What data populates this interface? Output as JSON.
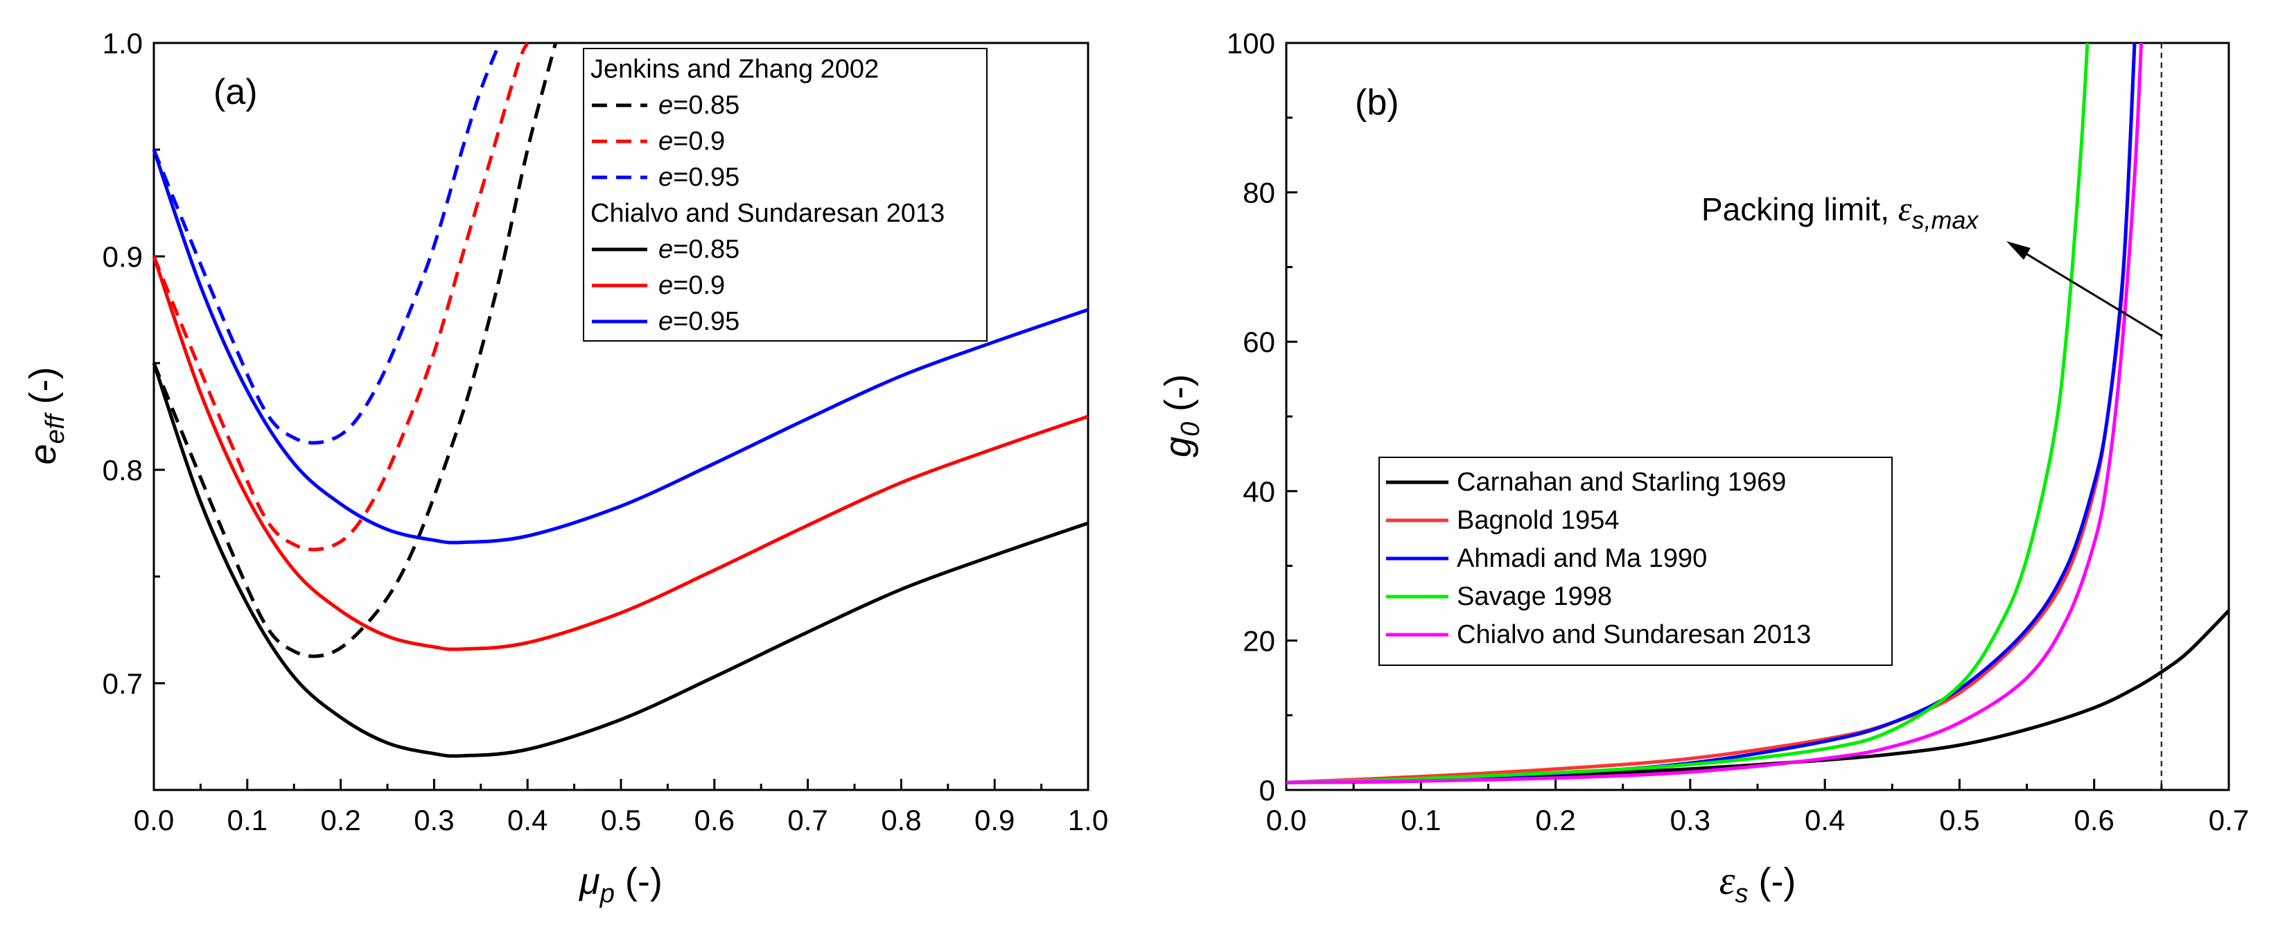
{
  "chart_data": [
    {
      "type": "line",
      "panel_label": "(a)",
      "xlabel": "μp (-)",
      "ylabel": "eeff (-)",
      "xlim": [
        0,
        1.0
      ],
      "ylim": [
        0.65,
        1.0
      ],
      "xticks": [
        "0.0",
        "0.1",
        "0.2",
        "0.3",
        "0.4",
        "0.5",
        "0.6",
        "0.7",
        "0.8",
        "0.9",
        "1.0"
      ],
      "yticks": [
        "0.7",
        "0.8",
        "0.9",
        "1.0"
      ],
      "legend_position": "top-center",
      "legend_groups": [
        {
          "title": "Jenkins and Zhang 2002",
          "series": [
            {
              "name": "e=0.85",
              "style": "dashed",
              "color": "#000000",
              "x": [
                0.0,
                0.04,
                0.08,
                0.12,
                0.15,
                0.18,
                0.21,
                0.25,
                0.28,
                0.31,
                0.34,
                0.37,
                0.4,
                0.43
              ],
              "y": [
                0.85,
                0.807,
                0.765,
                0.727,
                0.715,
                0.713,
                0.72,
                0.74,
                0.765,
                0.8,
                0.84,
                0.89,
                0.95,
                1.0
              ]
            },
            {
              "name": "e=0.9",
              "style": "dashed",
              "color": "#ff0000",
              "x": [
                0.0,
                0.04,
                0.08,
                0.12,
                0.15,
                0.18,
                0.21,
                0.24,
                0.27,
                0.3,
                0.33,
                0.36,
                0.39,
                0.4
              ],
              "y": [
                0.9,
                0.857,
                0.815,
                0.777,
                0.765,
                0.763,
                0.77,
                0.79,
                0.82,
                0.855,
                0.9,
                0.945,
                0.99,
                1.0
              ]
            },
            {
              "name": "e=0.95",
              "style": "dashed",
              "color": "#0000ff",
              "x": [
                0.0,
                0.04,
                0.08,
                0.12,
                0.15,
                0.18,
                0.21,
                0.24,
                0.27,
                0.3,
                0.33,
                0.35,
                0.37
              ],
              "y": [
                0.95,
                0.907,
                0.865,
                0.827,
                0.815,
                0.813,
                0.82,
                0.84,
                0.87,
                0.905,
                0.95,
                0.978,
                1.0
              ]
            }
          ]
        },
        {
          "title": "Chialvo and Sundaresan 2013",
          "series": [
            {
              "name": "e=0.85",
              "style": "solid",
              "color": "#000000",
              "x": [
                0.0,
                0.05,
                0.1,
                0.15,
                0.2,
                0.25,
                0.3,
                0.33,
                0.4,
                0.5,
                0.6,
                0.7,
                0.8,
                0.9,
                1.0
              ],
              "y": [
                0.85,
                0.785,
                0.737,
                0.703,
                0.684,
                0.672,
                0.667,
                0.666,
                0.669,
                0.683,
                0.703,
                0.724,
                0.744,
                0.76,
                0.775
              ]
            },
            {
              "name": "e=0.9",
              "style": "solid",
              "color": "#ff0000",
              "x": [
                0.0,
                0.05,
                0.1,
                0.15,
                0.2,
                0.25,
                0.3,
                0.33,
                0.4,
                0.5,
                0.6,
                0.7,
                0.8,
                0.9,
                1.0
              ],
              "y": [
                0.9,
                0.836,
                0.787,
                0.753,
                0.734,
                0.722,
                0.717,
                0.716,
                0.719,
                0.733,
                0.753,
                0.774,
                0.794,
                0.81,
                0.825
              ]
            },
            {
              "name": "e=0.95",
              "style": "solid",
              "color": "#0000ff",
              "x": [
                0.0,
                0.05,
                0.1,
                0.15,
                0.2,
                0.25,
                0.3,
                0.33,
                0.4,
                0.5,
                0.6,
                0.7,
                0.8,
                0.9,
                1.0
              ],
              "y": [
                0.95,
                0.886,
                0.837,
                0.803,
                0.784,
                0.772,
                0.767,
                0.766,
                0.769,
                0.783,
                0.803,
                0.824,
                0.844,
                0.86,
                0.875
              ]
            }
          ]
        }
      ]
    },
    {
      "type": "line",
      "panel_label": "(b)",
      "xlabel": "εs (-)",
      "ylabel": "g0 (-)",
      "xlim": [
        0,
        0.7
      ],
      "ylim": [
        0,
        100
      ],
      "xticks": [
        "0.0",
        "0.1",
        "0.2",
        "0.3",
        "0.4",
        "0.5",
        "0.6",
        "0.7"
      ],
      "yticks": [
        "0",
        "20",
        "40",
        "60",
        "80",
        "100"
      ],
      "legend_position": "middle-left",
      "annotation": {
        "text": "Packing limit, εs,max",
        "at_x": 0.65
      },
      "packing_limit_x": 0.65,
      "series": [
        {
          "name": "Carnahan and Starling 1969",
          "color": "#000000",
          "x": [
            0.0,
            0.1,
            0.2,
            0.3,
            0.4,
            0.45,
            0.5,
            0.55,
            0.6,
            0.63,
            0.65,
            0.67,
            0.7
          ],
          "y": [
            1.0,
            1.2,
            1.9,
            2.8,
            4.0,
            4.8,
            6.0,
            8.1,
            11.0,
            13.6,
            15.8,
            18.5,
            24.0
          ]
        },
        {
          "name": "Bagnold 1954",
          "color": "#ff3333",
          "x": [
            0.0,
            0.1,
            0.2,
            0.3,
            0.4,
            0.45,
            0.5,
            0.55,
            0.58,
            0.6,
            0.61,
            0.62,
            0.625,
            0.63
          ],
          "y": [
            1.0,
            1.8,
            2.8,
            4.2,
            6.8,
            9.0,
            13.0,
            21.0,
            29.0,
            40.0,
            50.0,
            65.0,
            80.0,
            100.0
          ]
        },
        {
          "name": "Ahmadi and Ma 1990",
          "color": "#0000ff",
          "x": [
            0.0,
            0.1,
            0.2,
            0.3,
            0.4,
            0.45,
            0.5,
            0.55,
            0.58,
            0.6,
            0.61,
            0.62,
            0.625,
            0.63
          ],
          "y": [
            1.0,
            1.4,
            2.2,
            3.6,
            6.5,
            9.0,
            13.5,
            21.5,
            30.0,
            41.0,
            50.0,
            66.0,
            80.0,
            100.0
          ]
        },
        {
          "name": "Savage 1998",
          "color": "#00ee00",
          "x": [
            0.0,
            0.1,
            0.2,
            0.3,
            0.4,
            0.45,
            0.5,
            0.53,
            0.55,
            0.57,
            0.58,
            0.59,
            0.595
          ],
          "y": [
            1.0,
            1.5,
            2.3,
            3.4,
            5.5,
            8.0,
            14.0,
            22.0,
            31.0,
            47.0,
            62.0,
            85.0,
            100.0
          ]
        },
        {
          "name": "Chialvo and Sundaresan 2013",
          "color": "#ff00ff",
          "x": [
            0.0,
            0.1,
            0.2,
            0.3,
            0.4,
            0.45,
            0.5,
            0.55,
            0.58,
            0.6,
            0.61,
            0.62,
            0.63,
            0.635
          ],
          "y": [
            1.0,
            1.2,
            1.6,
            2.4,
            4.2,
            5.8,
            9.0,
            15.0,
            23.0,
            33.0,
            42.0,
            58.0,
            82.0,
            100.0
          ]
        }
      ]
    }
  ]
}
